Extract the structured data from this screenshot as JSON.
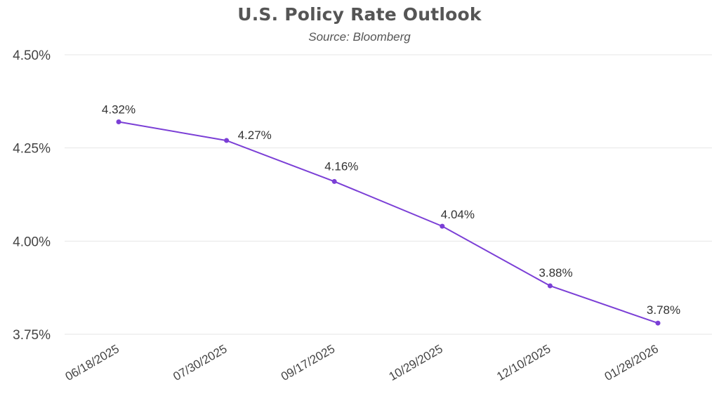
{
  "chart_data": {
    "type": "line",
    "title": "U.S. Policy Rate Outlook",
    "subtitle": "Source: Bloomberg",
    "xlabel": "",
    "ylabel": "",
    "categories": [
      "06/18/2025",
      "07/30/2025",
      "09/17/2025",
      "10/29/2025",
      "12/10/2025",
      "01/28/2026"
    ],
    "values": [
      4.32,
      4.27,
      4.16,
      4.04,
      3.88,
      3.78
    ],
    "data_labels": [
      "4.32%",
      "4.27%",
      "4.16%",
      "4.04%",
      "3.88%",
      "3.78%"
    ],
    "ylim": [
      3.75,
      4.5
    ],
    "y_ticks": [
      3.75,
      4.0,
      4.25,
      4.5
    ],
    "y_tick_labels": [
      "3.75%",
      "4.00%",
      "4.25%",
      "4.50%"
    ],
    "grid": true,
    "legend": "none",
    "line_color": "#7b3fd6"
  }
}
